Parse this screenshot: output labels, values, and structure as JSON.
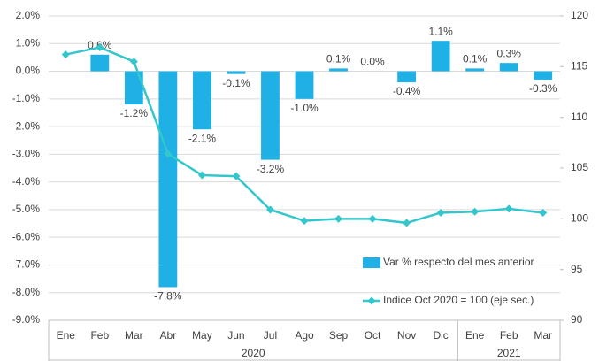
{
  "chart_data": {
    "type": "bar_line",
    "groups": [
      {
        "label": "2020",
        "categories": [
          "Ene",
          "Feb",
          "Mar",
          "Abr",
          "May",
          "Jun",
          "Jul",
          "Ago",
          "Sep",
          "Oct",
          "Nov",
          "Dic"
        ]
      },
      {
        "label": "2021",
        "categories": [
          "Ene",
          "Feb",
          "Mar"
        ]
      }
    ],
    "series": [
      {
        "name": "Var % respecto del mes anterior",
        "type": "bar",
        "color": "#1fb0e6",
        "values": [
          null,
          0.6,
          -1.2,
          -7.8,
          -2.1,
          -0.1,
          -3.2,
          -1.0,
          0.1,
          0.0,
          -0.4,
          1.1,
          0.1,
          0.3,
          -0.3
        ],
        "value_labels": [
          null,
          "0.6%",
          "-1.2%",
          "-7.8%",
          "-2.1%",
          "-0.1%",
          "-3.2%",
          "-1.0%",
          "0.1%",
          "0.0%",
          "-0.4%",
          "1.1%",
          "0.1%",
          "0.3%",
          "-0.3%"
        ]
      },
      {
        "name": "Indice Oct 2020 = 100 (eje sec.)",
        "type": "line",
        "color": "#33c6cc",
        "axis": "y2",
        "values": [
          116.2,
          116.9,
          115.5,
          106.4,
          104.3,
          104.2,
          100.9,
          99.8,
          100.0,
          100.0,
          99.6,
          100.6,
          100.7,
          101.0,
          100.6
        ]
      }
    ],
    "ylim": [
      -9,
      2
    ],
    "yticks": [
      {
        "value": -9,
        "label": "-9.0%"
      },
      {
        "value": -8,
        "label": "-8.0%"
      },
      {
        "value": -7,
        "label": "-7.0%"
      },
      {
        "value": -6,
        "label": "-6.0%"
      },
      {
        "value": -5,
        "label": "-5.0%"
      },
      {
        "value": -4,
        "label": "-4.0%"
      },
      {
        "value": -3,
        "label": "-3.0%"
      },
      {
        "value": -2,
        "label": "-2.0%"
      },
      {
        "value": -1,
        "label": "-1.0%"
      },
      {
        "value": 0,
        "label": "0.0%"
      },
      {
        "value": 1,
        "label": "1.0%"
      },
      {
        "value": 2,
        "label": "2.0%"
      }
    ],
    "y2lim": [
      90,
      120
    ],
    "y2ticks": [
      90,
      95,
      100,
      105,
      110,
      115,
      120
    ],
    "grid": true,
    "legend": "lower right"
  }
}
